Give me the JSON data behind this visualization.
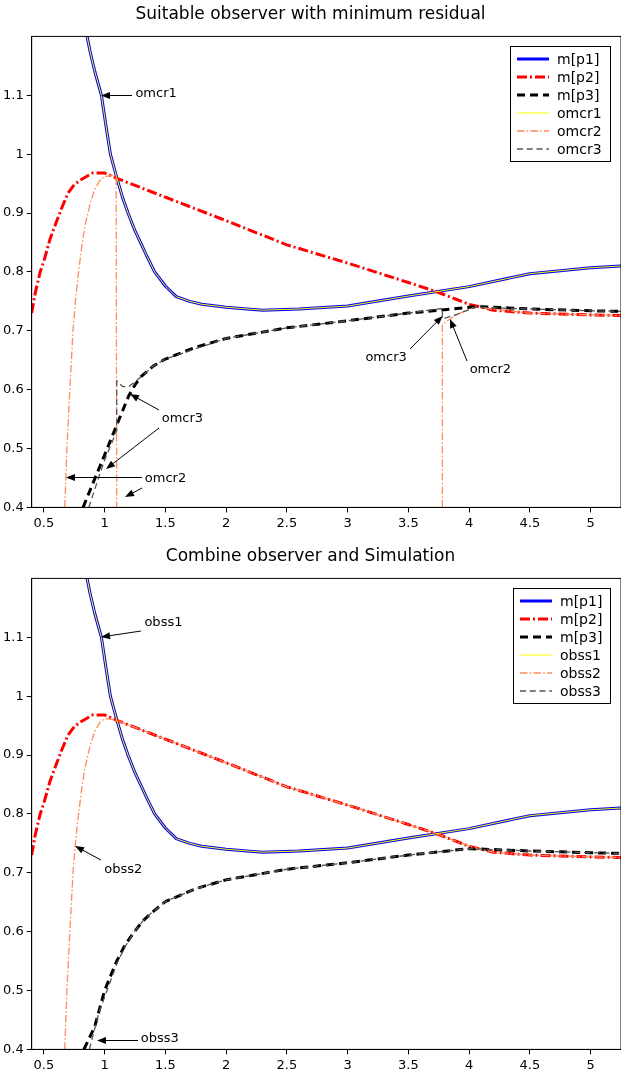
{
  "chart_data": [
    {
      "type": "line",
      "title": "Suitable observer with minimum residual",
      "xlim": [
        0.4,
        5.25
      ],
      "ylim": [
        0.4,
        1.2
      ],
      "xticks": [
        0.5,
        1,
        1.5,
        2,
        2.5,
        3,
        3.5,
        4,
        4.5,
        5
      ],
      "yticks": [
        0.4,
        0.5,
        0.6,
        0.7,
        0.8,
        0.9,
        1,
        1.1
      ],
      "legend": "top right",
      "annotations": [
        {
          "text": "omcr1",
          "x": 0.974,
          "y": 1.1
        },
        {
          "text": "omcr3",
          "x": 1.207,
          "y": 0.593
        },
        {
          "text": "omcr2",
          "x": 0.681,
          "y": 0.45
        },
        {
          "text": "omcr3",
          "x": 3.78,
          "y": 0.725
        },
        {
          "text": "omcr2",
          "x": 3.84,
          "y": 0.72
        }
      ],
      "series": [
        {
          "name": "m[p1]",
          "color": "#0000ff",
          "line_style": "solid",
          "x": [
            0.856,
            0.88,
            0.92,
            0.974,
            1.01,
            1.048,
            1.1,
            1.15,
            1.193,
            1.25,
            1.3,
            1.35,
            1.412,
            1.5,
            1.59,
            1.7,
            1.8,
            2,
            2.3,
            2.6,
            3,
            3.5,
            4,
            4.5,
            5,
            5.25
          ],
          "values": [
            1.2,
            1.175,
            1.14,
            1.1,
            1.05,
            1.0,
            0.96,
            0.925,
            0.9,
            0.87,
            0.848,
            0.826,
            0.8,
            0.776,
            0.758,
            0.75,
            0.745,
            0.74,
            0.735,
            0.737,
            0.742,
            0.759,
            0.775,
            0.797,
            0.807,
            0.81
          ]
        },
        {
          "name": "m[p2]",
          "color": "#ff0000",
          "line_style": "dashdot",
          "x": [
            0.4,
            0.43,
            0.47,
            0.5,
            0.55,
            0.6,
            0.65,
            0.7,
            0.75,
            0.8,
            0.9,
            1.0,
            1.1,
            1.5,
            2,
            2.5,
            3,
            3.5,
            3.75,
            4,
            4.2,
            4.5,
            5,
            5.25
          ],
          "values": [
            0.73,
            0.765,
            0.8,
            0.818,
            0.855,
            0.883,
            0.91,
            0.934,
            0.948,
            0.956,
            0.968,
            0.968,
            0.959,
            0.927,
            0.887,
            0.846,
            0.815,
            0.782,
            0.765,
            0.745,
            0.735,
            0.73,
            0.727,
            0.726
          ]
        },
        {
          "name": "m[p3]",
          "color": "#000000",
          "line_style": "dashed",
          "x": [
            0.823,
            0.9,
            0.95,
            1.0,
            1.1,
            1.2,
            1.25,
            1.3,
            1.4,
            1.5,
            1.75,
            2,
            2.5,
            3,
            3.5,
            4,
            4.1,
            4.5,
            5,
            5.25
          ],
          "values": [
            0.4,
            0.439,
            0.464,
            0.489,
            0.54,
            0.59,
            0.608,
            0.622,
            0.64,
            0.652,
            0.672,
            0.687,
            0.705,
            0.717,
            0.73,
            0.74,
            0.741,
            0.737,
            0.734,
            0.733
          ]
        },
        {
          "name": "omcr1",
          "color": "#ffff00",
          "line_style": "solid",
          "x": [
            0.856,
            0.88,
            0.92,
            0.974,
            1.01,
            1.048,
            1.1,
            1.15,
            1.193,
            1.25,
            1.3,
            1.35,
            1.412,
            1.5,
            1.59,
            1.7,
            1.8,
            2,
            2.3,
            2.6,
            3,
            3.5,
            4,
            4.5,
            5,
            5.25
          ],
          "values": [
            1.2,
            1.175,
            1.14,
            1.1,
            1.05,
            1.0,
            0.96,
            0.925,
            0.9,
            0.87,
            0.848,
            0.826,
            0.8,
            0.776,
            0.758,
            0.75,
            0.745,
            0.74,
            0.735,
            0.737,
            0.742,
            0.759,
            0.775,
            0.797,
            0.807,
            0.81
          ]
        },
        {
          "name": "omcr2",
          "color": "#ff8c5a",
          "line_style": "dashdot",
          "x": [
            0.672,
            0.69,
            0.714,
            0.74,
            0.76,
            0.78,
            0.81,
            0.837,
            0.88,
            0.919,
            0.96,
            1.0,
            1.095,
            1.1,
            2.5,
            3.78,
            3.78,
            3.9,
            4.05,
            4.5,
            5,
            5.25
          ],
          "values": [
            0.4,
            0.5,
            0.6,
            0.7,
            0.75,
            0.79,
            0.84,
            0.877,
            0.915,
            0.94,
            0.955,
            0.962,
            0.965,
            0.4,
            null,
            0.4,
            0.711,
            0.728,
            0.74,
            0.73,
            0.727,
            0.726
          ]
        },
        {
          "name": "omcr3",
          "color": "#555555",
          "line_style": "dashed",
          "x": [
            0.87,
            0.95,
            1.0,
            1.1,
            1.1,
            1.15,
            1.2,
            1.3,
            1.4,
            1.5,
            2,
            2.5,
            3,
            3.5,
            3.78,
            3.78,
            3.9,
            4.05,
            4.5,
            5,
            5.25
          ],
          "values": [
            0.4,
            0.45,
            0.48,
            0.53,
            0.615,
            0.605,
            0.605,
            0.622,
            0.64,
            0.652,
            0.687,
            0.705,
            0.717,
            0.73,
            0.738,
            0.72,
            0.728,
            0.74,
            0.737,
            0.734,
            0.733
          ]
        }
      ]
    },
    {
      "type": "line",
      "title": "Combine observer and Simulation",
      "xlim": [
        0.4,
        5.25
      ],
      "ylim": [
        0.4,
        1.2
      ],
      "xticks": [
        0.5,
        1,
        1.5,
        2,
        2.5,
        3,
        3.5,
        4,
        4.5,
        5
      ],
      "yticks": [
        0.4,
        0.5,
        0.6,
        0.7,
        0.8,
        0.9,
        1,
        1.1
      ],
      "legend": "top right",
      "annotations": [
        {
          "text": "obss1",
          "x": 0.974,
          "y": 1.1
        },
        {
          "text": "obss2",
          "x": 0.758,
          "y": 0.745
        },
        "obss3"
      ],
      "series": [
        {
          "name": "m[p1]",
          "color": "#0000ff",
          "line_style": "solid",
          "x": [
            0.856,
            0.88,
            0.92,
            0.974,
            1.01,
            1.048,
            1.1,
            1.15,
            1.193,
            1.25,
            1.3,
            1.35,
            1.412,
            1.5,
            1.59,
            1.7,
            1.8,
            2,
            2.3,
            2.6,
            3,
            3.5,
            4,
            4.5,
            5,
            5.25
          ],
          "values": [
            1.2,
            1.175,
            1.14,
            1.1,
            1.05,
            1.0,
            0.96,
            0.925,
            0.9,
            0.87,
            0.848,
            0.826,
            0.8,
            0.776,
            0.758,
            0.75,
            0.745,
            0.74,
            0.735,
            0.737,
            0.742,
            0.759,
            0.775,
            0.797,
            0.807,
            0.81
          ]
        },
        {
          "name": "m[p2]",
          "color": "#ff0000",
          "line_style": "dashdot",
          "x": [
            0.4,
            0.43,
            0.47,
            0.5,
            0.55,
            0.6,
            0.65,
            0.7,
            0.75,
            0.8,
            0.9,
            1.0,
            1.1,
            1.5,
            2,
            2.5,
            3,
            3.5,
            3.75,
            4,
            4.2,
            4.5,
            5,
            5.25
          ],
          "values": [
            0.73,
            0.765,
            0.8,
            0.818,
            0.855,
            0.883,
            0.91,
            0.934,
            0.948,
            0.956,
            0.968,
            0.968,
            0.959,
            0.927,
            0.887,
            0.846,
            0.815,
            0.782,
            0.765,
            0.745,
            0.735,
            0.73,
            0.727,
            0.726
          ]
        },
        {
          "name": "m[p3]",
          "color": "#000000",
          "line_style": "dashed",
          "x": [
            0.83,
            0.918,
            1.0,
            1.1,
            1.17,
            1.246,
            1.31,
            1.38,
            1.5,
            1.75,
            2,
            2.5,
            3,
            3.5,
            4,
            4.5,
            5,
            5.25
          ],
          "values": [
            0.4,
            0.438,
            0.5,
            0.55,
            0.578,
            0.6,
            0.617,
            0.631,
            0.651,
            0.673,
            0.688,
            0.706,
            0.717,
            0.73,
            0.741,
            0.737,
            0.734,
            0.733
          ]
        },
        {
          "name": "obss1",
          "color": "#ffff00",
          "line_style": "solid",
          "x": [
            0.856,
            0.88,
            0.92,
            0.974,
            1.01,
            1.048,
            1.1,
            1.15,
            1.193,
            1.25,
            1.3,
            1.35,
            1.412,
            1.5,
            1.59,
            1.7,
            1.8,
            2,
            2.3,
            2.6,
            3,
            3.5,
            4,
            4.5,
            5,
            5.25
          ],
          "values": [
            1.2,
            1.175,
            1.14,
            1.1,
            1.05,
            1.0,
            0.96,
            0.925,
            0.9,
            0.87,
            0.848,
            0.826,
            0.8,
            0.776,
            0.758,
            0.75,
            0.745,
            0.74,
            0.735,
            0.737,
            0.742,
            0.759,
            0.775,
            0.797,
            0.807,
            0.81
          ]
        },
        {
          "name": "obss2",
          "color": "#ff8c5a",
          "line_style": "dashdot",
          "x": [
            0.672,
            0.69,
            0.714,
            0.74,
            0.76,
            0.78,
            0.81,
            0.837,
            0.88,
            0.919,
            0.96,
            1.0,
            1.1,
            1.5,
            2,
            2.5,
            3,
            3.5,
            3.75,
            4,
            4.2,
            4.5,
            5,
            5.25
          ],
          "values": [
            0.4,
            0.5,
            0.6,
            0.7,
            0.75,
            0.79,
            0.84,
            0.877,
            0.915,
            0.94,
            0.955,
            0.962,
            0.959,
            0.927,
            0.887,
            0.846,
            0.815,
            0.782,
            0.765,
            0.745,
            0.735,
            0.73,
            0.727,
            0.726
          ]
        },
        {
          "name": "obss3",
          "color": "#555555",
          "line_style": "dashed",
          "x": [
            0.875,
            0.95,
            1.02,
            1.1,
            1.17,
            1.246,
            1.31,
            1.38,
            1.5,
            1.75,
            2,
            2.5,
            3,
            3.5,
            4,
            4.5,
            5,
            5.25
          ],
          "values": [
            0.4,
            0.46,
            0.5,
            0.545,
            0.575,
            0.6,
            0.617,
            0.631,
            0.651,
            0.673,
            0.688,
            0.706,
            0.717,
            0.73,
            0.741,
            0.737,
            0.734,
            0.733
          ]
        }
      ]
    }
  ]
}
